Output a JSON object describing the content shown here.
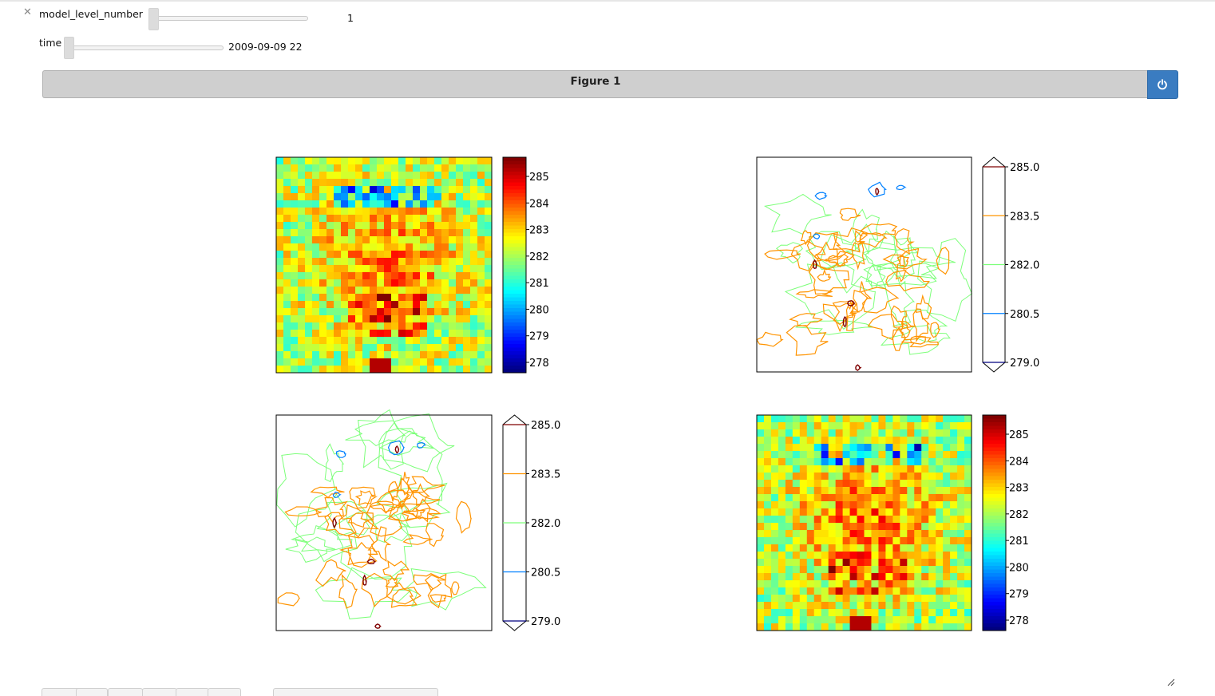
{
  "widgets": {
    "close_symbol": "✕",
    "sliders": [
      {
        "label": "model_level_number",
        "value": "1",
        "position": 0.0
      },
      {
        "label": "time",
        "value": "2009-09-09 22",
        "position": 0.0
      }
    ]
  },
  "figure": {
    "title": "Figure 1",
    "power_icon": "power-icon"
  },
  "panels": [
    {
      "type": "heatmap",
      "colorbar": {
        "ticks": [
          "285",
          "284",
          "283",
          "282",
          "281",
          "280",
          "279",
          "278"
        ],
        "extend": false
      }
    },
    {
      "type": "contour",
      "colorbar": {
        "ticks": [
          "285.0",
          "283.5",
          "282.0",
          "280.5",
          "279.0"
        ],
        "extend": true
      }
    },
    {
      "type": "contour",
      "colorbar": {
        "ticks": [
          "285.0",
          "283.5",
          "282.0",
          "280.5",
          "279.0"
        ],
        "extend": true
      }
    },
    {
      "type": "heatmap",
      "colorbar": {
        "ticks": [
          "285",
          "284",
          "283",
          "282",
          "281",
          "280",
          "279",
          "278"
        ],
        "extend": false
      }
    }
  ],
  "chart_data": [
    {
      "type": "heatmap",
      "title": "",
      "xlabel": "",
      "ylabel": "",
      "colorbar_range": [
        277.8,
        285.8
      ],
      "colormap": "jet"
    },
    {
      "type": "contour",
      "title": "",
      "xlabel": "",
      "ylabel": "",
      "levels": [
        279.0,
        280.5,
        282.0,
        283.5,
        285.0
      ],
      "level_colors": [
        "#00007f",
        "#0080ff",
        "#7dff7a",
        "#ff9400",
        "#7f0000"
      ]
    },
    {
      "type": "contour",
      "title": "",
      "xlabel": "",
      "ylabel": "",
      "levels": [
        279.0,
        280.5,
        282.0,
        283.5,
        285.0
      ],
      "level_colors": [
        "#00007f",
        "#0080ff",
        "#7dff7a",
        "#ff9400",
        "#7f0000"
      ]
    },
    {
      "type": "heatmap",
      "title": "",
      "xlabel": "",
      "ylabel": "",
      "colorbar_range": [
        277.8,
        285.8
      ],
      "colormap": "jet"
    }
  ]
}
